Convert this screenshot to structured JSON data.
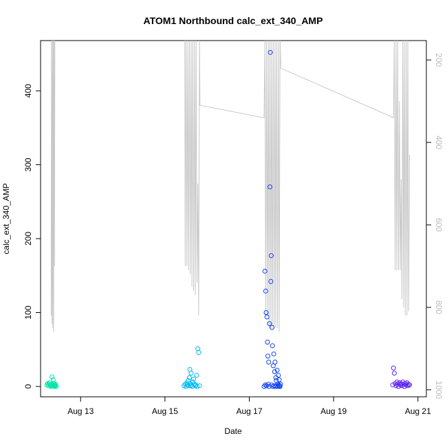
{
  "chart_data": {
    "type": "scatter",
    "title": "ATOM1 Northbound calc_ext_340_AMP",
    "xlabel": "Date",
    "ylabel": "calc_ext_340_AMP",
    "x_ticks": [
      "Aug 13",
      "Aug 15",
      "Aug 17",
      "Aug 19",
      "Aug 21"
    ],
    "x_tick_days": [
      13,
      15,
      17,
      19,
      21
    ],
    "xlim_days": [
      12.05,
      21.2
    ],
    "ylim": [
      -14,
      468
    ],
    "y_ticks": [
      0,
      100,
      200,
      300,
      400
    ],
    "secondary_axis": {
      "ticks": [
        200,
        400,
        600,
        800,
        1000
      ],
      "ylim": [
        1017,
        153
      ],
      "reversed": true,
      "line_color": "#c8c8c8",
      "line_values": [
        [
          12.3,
          820
        ],
        [
          12.31,
          150
        ],
        [
          12.32,
          840
        ],
        [
          12.33,
          150
        ],
        [
          12.34,
          850
        ],
        [
          12.35,
          150
        ],
        [
          12.36,
          860
        ],
        [
          12.37,
          150
        ],
        [
          12.38,
          700
        ],
        [
          12.39,
          150
        ],
        [
          12.42,
          150
        ],
        [
          15.47,
          150
        ],
        [
          15.48,
          700
        ],
        [
          15.5,
          150
        ],
        [
          15.52,
          700
        ],
        [
          15.54,
          150
        ],
        [
          15.56,
          710
        ],
        [
          15.58,
          150
        ],
        [
          15.6,
          720
        ],
        [
          15.62,
          150
        ],
        [
          15.64,
          750
        ],
        [
          15.66,
          150
        ],
        [
          15.68,
          760
        ],
        [
          15.7,
          150
        ],
        [
          15.72,
          770
        ],
        [
          15.74,
          150
        ],
        [
          15.76,
          740
        ],
        [
          15.78,
          500
        ],
        [
          15.8,
          820
        ],
        [
          15.82,
          150
        ],
        [
          15.83,
          310
        ],
        [
          17.35,
          340
        ],
        [
          17.37,
          150
        ],
        [
          17.39,
          820
        ],
        [
          17.41,
          150
        ],
        [
          17.43,
          820
        ],
        [
          17.45,
          150
        ],
        [
          17.47,
          850
        ],
        [
          17.49,
          150
        ],
        [
          17.51,
          850
        ],
        [
          17.53,
          150
        ],
        [
          17.55,
          850
        ],
        [
          17.57,
          150
        ],
        [
          17.59,
          850
        ],
        [
          17.61,
          150
        ],
        [
          17.63,
          850
        ],
        [
          17.65,
          150
        ],
        [
          17.67,
          850
        ],
        [
          17.69,
          150
        ],
        [
          17.71,
          860
        ],
        [
          17.73,
          150
        ],
        [
          17.75,
          220
        ],
        [
          20.42,
          340
        ],
        [
          20.44,
          150
        ],
        [
          20.46,
          710
        ],
        [
          20.48,
          150
        ],
        [
          20.5,
          710
        ],
        [
          20.52,
          150
        ],
        [
          20.54,
          710
        ],
        [
          20.56,
          300
        ],
        [
          20.58,
          710
        ],
        [
          20.6,
          490
        ],
        [
          20.62,
          780
        ],
        [
          20.64,
          150
        ],
        [
          20.66,
          800
        ],
        [
          20.68,
          150
        ],
        [
          20.7,
          820
        ],
        [
          20.72,
          150
        ],
        [
          20.74,
          820
        ],
        [
          20.76,
          150
        ],
        [
          20.78,
          810
        ],
        [
          20.8,
          430
        ]
      ]
    },
    "series": [
      {
        "color": "#00e5a8",
        "x_days": [
          12.2,
          12.22,
          12.24,
          12.25,
          12.26,
          12.28,
          12.3,
          12.31,
          12.32,
          12.33,
          12.34,
          12.35,
          12.36,
          12.37,
          12.38,
          12.39,
          12.4,
          12.41,
          12.42
        ],
        "y": [
          2,
          4,
          1,
          3,
          5,
          2,
          0,
          1,
          13,
          3,
          2,
          9,
          1,
          4,
          0,
          2,
          1,
          3,
          0
        ]
      },
      {
        "color": "#00b8f2",
        "x_days": [
          15.45,
          15.48,
          15.5,
          15.52,
          15.53,
          15.55,
          15.56,
          15.58,
          15.59,
          15.6,
          15.61,
          15.62,
          15.63,
          15.65,
          15.66,
          15.68,
          15.7,
          15.72,
          15.73,
          15.75,
          15.76,
          15.78,
          15.8,
          15.82
        ],
        "y": [
          1,
          3,
          0,
          5,
          2,
          8,
          1,
          12,
          23,
          4,
          1,
          18,
          2,
          0,
          6,
          10,
          3,
          1,
          2,
          15,
          0,
          51,
          46,
          1
        ]
      },
      {
        "color": "#0c3ff2",
        "x_days": [
          17.35,
          17.37,
          17.38,
          17.39,
          17.4,
          17.41,
          17.42,
          17.43,
          17.44,
          17.45,
          17.46,
          17.47,
          17.48,
          17.49,
          17.5,
          17.51,
          17.52,
          17.53,
          17.54,
          17.55,
          17.56,
          17.57,
          17.58,
          17.59,
          17.6,
          17.61,
          17.62,
          17.63,
          17.64,
          17.65,
          17.66,
          17.67,
          17.68,
          17.69,
          17.7,
          17.71,
          17.72,
          17.73,
          17.74
        ],
        "y": [
          0,
          156,
          2,
          129,
          100,
          1,
          94,
          60,
          41,
          3,
          33,
          0,
          85,
          270,
          452,
          142,
          177,
          2,
          80,
          55,
          0,
          28,
          44,
          1,
          20,
          33,
          0,
          12,
          8,
          1,
          22,
          3,
          0,
          15,
          2,
          9,
          1,
          0,
          3
        ]
      },
      {
        "color": "#5b22f0",
        "x_days": [
          20.4,
          20.42,
          20.44,
          20.46,
          20.48,
          20.5,
          20.52,
          20.54,
          20.56,
          20.58,
          20.6,
          20.62,
          20.64,
          20.66,
          20.68,
          20.7,
          20.72,
          20.74,
          20.76,
          20.78,
          20.8
        ],
        "y": [
          2,
          25,
          18,
          4,
          1,
          6,
          3,
          0,
          5,
          2,
          4,
          1,
          6,
          3,
          0,
          4,
          2,
          5,
          1,
          3,
          2
        ]
      }
    ]
  }
}
